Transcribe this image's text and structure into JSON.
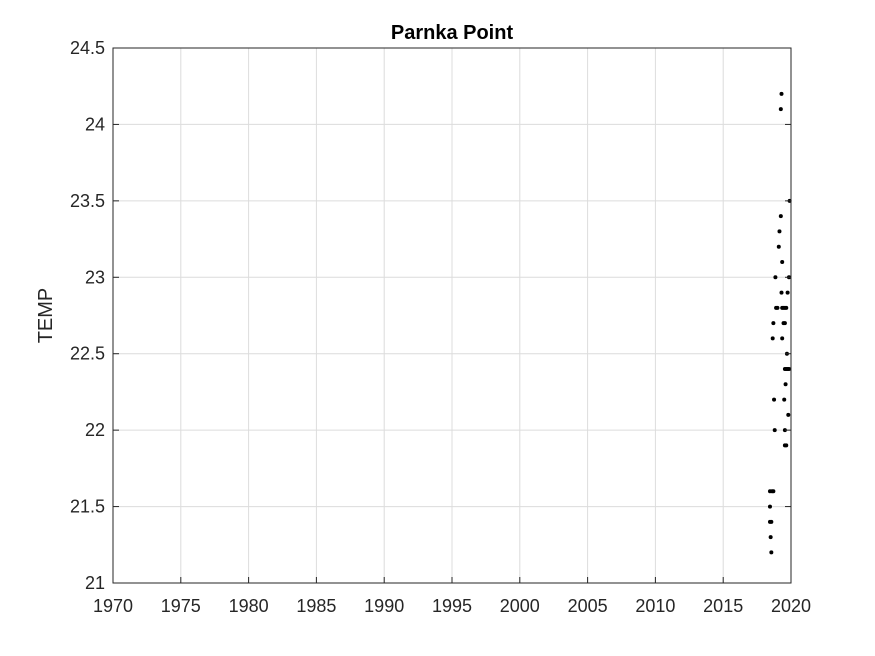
{
  "chart_data": {
    "type": "scatter",
    "title": "Parnka Point",
    "xlabel": "",
    "ylabel": "TEMP",
    "xlim": [
      1970,
      2020
    ],
    "ylim": [
      21,
      24.5
    ],
    "xticks": [
      1970,
      1975,
      1980,
      1985,
      1990,
      1995,
      2000,
      2005,
      2010,
      2015,
      2020
    ],
    "yticks": [
      21,
      21.5,
      22,
      22.5,
      23,
      23.5,
      24,
      24.5
    ],
    "xtick_labels": [
      "1970",
      "1975",
      "1980",
      "1985",
      "1990",
      "1995",
      "2000",
      "2005",
      "2010",
      "2015",
      "2020"
    ],
    "ytick_labels": [
      "21",
      "21.5",
      "22",
      "22.5",
      "23",
      "23.5",
      "24",
      "24.5"
    ],
    "grid": true,
    "marker_color": "#000000",
    "series": [
      {
        "points": [
          [
            2018.55,
            21.2
          ],
          [
            2018.5,
            21.3
          ],
          [
            2018.45,
            21.4
          ],
          [
            2018.55,
            21.4
          ],
          [
            2018.45,
            21.5
          ],
          [
            2018.45,
            21.6
          ],
          [
            2018.6,
            21.6
          ],
          [
            2018.7,
            21.6
          ],
          [
            2018.8,
            22.0
          ],
          [
            2018.75,
            22.2
          ],
          [
            2018.65,
            22.6
          ],
          [
            2018.7,
            22.7
          ],
          [
            2018.9,
            22.8
          ],
          [
            2019.0,
            22.8
          ],
          [
            2018.85,
            23.0
          ],
          [
            2019.1,
            23.2
          ],
          [
            2019.15,
            23.3
          ],
          [
            2019.25,
            23.4
          ],
          [
            2019.35,
            23.1
          ],
          [
            2019.3,
            22.9
          ],
          [
            2019.35,
            22.8
          ],
          [
            2019.45,
            22.8
          ],
          [
            2019.55,
            22.8
          ],
          [
            2019.65,
            22.8
          ],
          [
            2019.45,
            22.7
          ],
          [
            2019.55,
            22.7
          ],
          [
            2019.35,
            22.6
          ],
          [
            2019.55,
            22.4
          ],
          [
            2019.65,
            22.4
          ],
          [
            2019.75,
            22.4
          ],
          [
            2019.85,
            22.4
          ],
          [
            2019.7,
            22.5
          ],
          [
            2019.6,
            22.3
          ],
          [
            2019.5,
            22.2
          ],
          [
            2019.55,
            22.0
          ],
          [
            2019.55,
            21.9
          ],
          [
            2019.65,
            21.9
          ],
          [
            2019.8,
            22.1
          ],
          [
            2019.75,
            22.9
          ],
          [
            2019.85,
            23.0
          ],
          [
            2019.9,
            23.5
          ],
          [
            2019.25,
            24.1
          ],
          [
            2019.3,
            24.2
          ]
        ]
      }
    ]
  }
}
